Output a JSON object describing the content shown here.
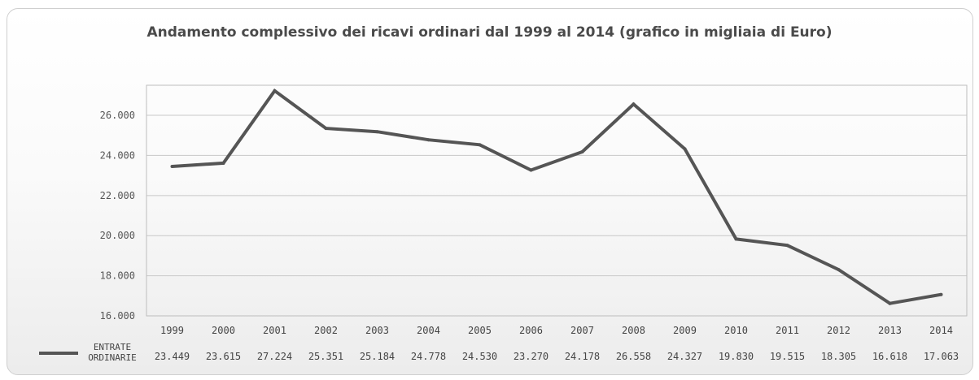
{
  "chart_data": {
    "type": "line",
    "title": "Andamento complessivo dei ricavi ordinari dal 1999 al 2014 (grafico in migliaia di Euro)",
    "categories": [
      "1999",
      "2000",
      "2001",
      "2002",
      "2003",
      "2004",
      "2005",
      "2006",
      "2007",
      "2008",
      "2009",
      "2010",
      "2011",
      "2012",
      "2013",
      "2014"
    ],
    "series": [
      {
        "name": "ENTRATE ORDINARIE",
        "legend_lines": [
          "ENTRATE",
          "ORDINARIE"
        ],
        "values": [
          23449,
          23615,
          27224,
          25351,
          25184,
          24778,
          24530,
          23270,
          24178,
          26558,
          24327,
          19830,
          19515,
          18305,
          16618,
          17063
        ],
        "value_labels": [
          "23.449",
          "23.615",
          "27.224",
          "25.351",
          "25.184",
          "24.778",
          "24.530",
          "23.270",
          "24.178",
          "26.558",
          "24.327",
          "19.830",
          "19.515",
          "18.305",
          "16.618",
          "17.063"
        ],
        "color": "#555555"
      }
    ],
    "ylim": [
      16000,
      27500
    ],
    "yticks": [
      16000,
      18000,
      20000,
      22000,
      24000,
      26000
    ],
    "ytick_labels": [
      "16.000",
      "18.000",
      "20.000",
      "22.000",
      "24.000",
      "26.000"
    ],
    "grid": true,
    "legend": "bottom-left data table",
    "colors": {
      "line": "#555555",
      "grid": "#c8c8c8",
      "title": "#4a4a4a"
    }
  }
}
